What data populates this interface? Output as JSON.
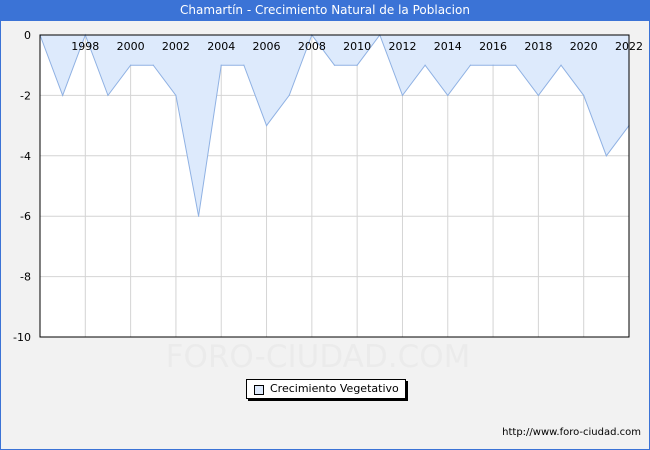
{
  "title": "Chamartín - Crecimiento Natural de la Poblacion",
  "watermark": "FORO-CIUDAD.COM",
  "source": "http://www.foro-ciudad.com",
  "colors": {
    "title_bg": "#3b73d6",
    "fill": "#ddeafc",
    "line": "#8fb1e3",
    "grid": "#d4d4d4"
  },
  "chart_data": {
    "type": "area",
    "title": "Chamartín - Crecimiento Natural de la Poblacion",
    "xlabel": "",
    "ylabel": "",
    "x": [
      1996,
      1997,
      1998,
      1999,
      2000,
      2001,
      2002,
      2003,
      2004,
      2005,
      2006,
      2007,
      2008,
      2009,
      2010,
      2011,
      2012,
      2013,
      2014,
      2015,
      2016,
      2017,
      2018,
      2019,
      2020,
      2021,
      2022
    ],
    "series": [
      {
        "name": "Crecimiento Vegetativo",
        "values": [
          0,
          -2,
          0,
          -2,
          -1,
          -1,
          -2,
          -6,
          -1,
          -1,
          -3,
          -2,
          0,
          -1,
          -1,
          0,
          -2,
          -1,
          -2,
          -1,
          -1,
          -1,
          -2,
          -1,
          -2,
          -4,
          -3
        ]
      }
    ],
    "x_tick_labels": [
      "1998",
      "2000",
      "2002",
      "2004",
      "2006",
      "2008",
      "2010",
      "2012",
      "2014",
      "2016",
      "2018",
      "2020",
      "2022"
    ],
    "y_ticks": [
      0,
      -2,
      -4,
      -6,
      -8,
      -10
    ],
    "xlim": [
      1996,
      2022
    ],
    "ylim": [
      -10,
      0
    ],
    "grid": true,
    "legend_position": "bottom-center"
  }
}
